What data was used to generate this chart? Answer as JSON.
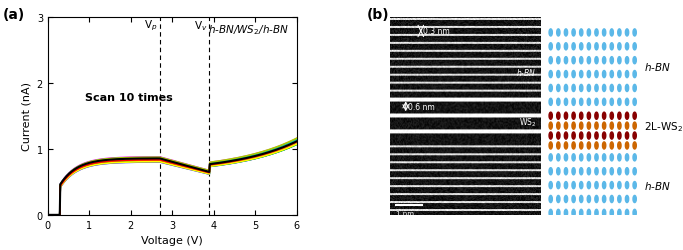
{
  "title_a": "(a)",
  "title_b": "(b)",
  "formula_label": "h-BN/WS$_2$/h-BN",
  "scan_label": "Scan 10 times",
  "xlabel": "Voltage (V)",
  "ylabel": "Current (nA)",
  "xlim": [
    0,
    6
  ],
  "ylim": [
    0,
    3
  ],
  "xticks": [
    0,
    1,
    2,
    3,
    4,
    5,
    6
  ],
  "yticks": [
    0,
    1,
    2,
    3
  ],
  "vp": 2.7,
  "vv": 3.9,
  "vp_label": "V$_p$",
  "vv_label": "V$_v$",
  "colors": [
    "#000000",
    "#ff00ff",
    "#0000ff",
    "#00aaff",
    "#00ccaa",
    "#00cc00",
    "#aacc00",
    "#ffff00",
    "#ff8800",
    "#ff0000"
  ],
  "tem_label_hbn": "h-BN",
  "tem_label_ws2": "WS$_2$",
  "tem_0p3": "0.3 nm",
  "tem_0p6": "0.6 nm",
  "tem_scale": "1 nm",
  "legend_hbn": "h-BN",
  "legend_2l_ws2": "2L-WS$_2$",
  "legend_hbn2": "h-BN",
  "dot_color_hbn": "#5bb8e8",
  "dot_color_ws2_w": "#cc6600",
  "dot_color_ws2_s": "#880000",
  "background": "#ffffff"
}
